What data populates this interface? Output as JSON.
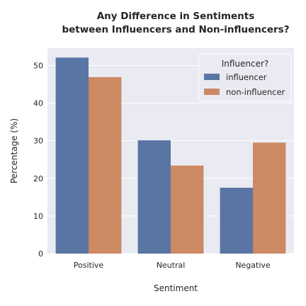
{
  "chart_data": {
    "type": "bar",
    "title_line1": "Any Difference in Sentiments",
    "title_line2": "between Influencers and Non-influencers?",
    "xlabel": "Sentiment",
    "ylabel": "Percentage (%)",
    "categories": [
      "Positive",
      "Neutral",
      "Negative"
    ],
    "yticks": [
      "0",
      "10",
      "20",
      "30",
      "40",
      "50"
    ],
    "ylim": [
      0,
      54.6
    ],
    "grid": true,
    "legend": {
      "title": "Influencer?",
      "placement": "top-right"
    },
    "series": [
      {
        "name": "influencer",
        "color": "#5875a4",
        "values": [
          52.1,
          30.1,
          17.5
        ]
      },
      {
        "name": "non-influencer",
        "color": "#cc8963",
        "values": [
          46.9,
          23.4,
          29.5
        ]
      }
    ]
  }
}
